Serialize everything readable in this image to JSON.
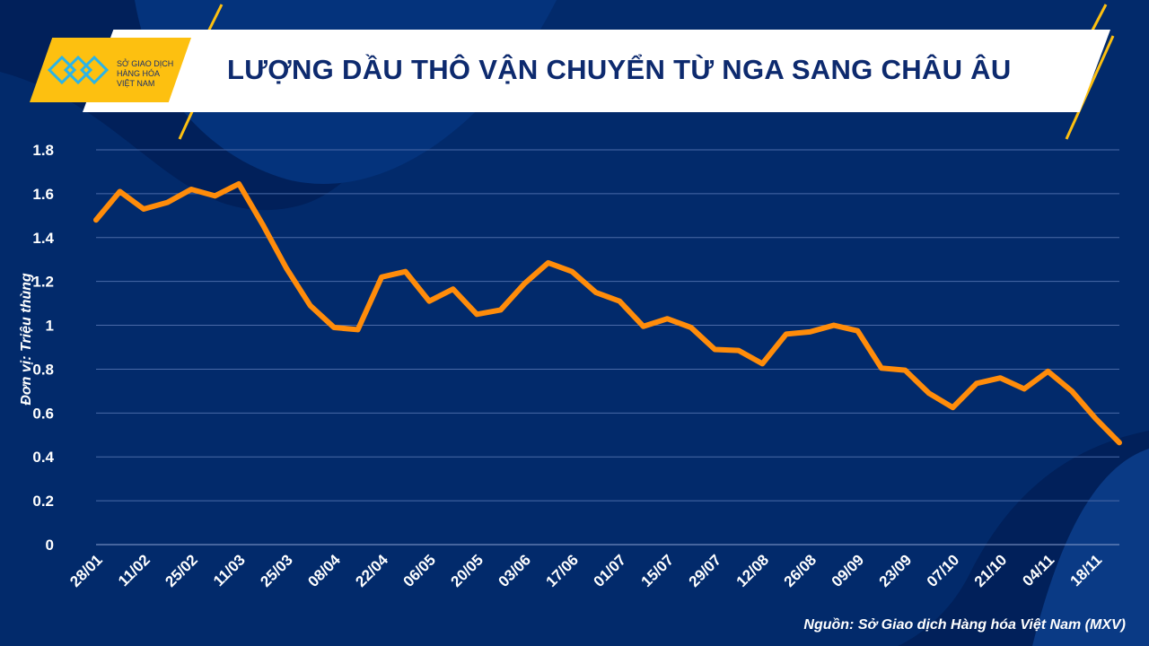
{
  "logo": {
    "line1": "SỞ GIAO DỊCH",
    "line2": "HÀNG HÓA",
    "line3": "VIỆT NAM"
  },
  "colors": {
    "background": "#022a6b",
    "line": "#ff8c0a",
    "accent": "#fdc010",
    "grid": "#4a6aa8"
  },
  "chart_data": {
    "type": "line",
    "title": "LƯỢNG DẦU THÔ VẬN CHUYỂN TỪ NGA SANG CHÂU ÂU",
    "ylabel": "Đơn vị: Triệu thùng",
    "xlabel": "",
    "ylim": [
      0,
      1.8
    ],
    "yticks": [
      "0",
      "0.2",
      "0.4",
      "0.6",
      "0.8",
      "1",
      "1.2",
      "1.4",
      "1.6",
      "1.8"
    ],
    "grid": true,
    "xticklabels": [
      "28/01",
      "11/02",
      "25/02",
      "11/03",
      "25/03",
      "08/04",
      "22/04",
      "06/05",
      "20/05",
      "03/06",
      "17/06",
      "01/07",
      "15/07",
      "29/07",
      "12/08",
      "26/08",
      "09/09",
      "23/09",
      "07/10",
      "21/10",
      "04/11",
      "18/11"
    ],
    "values": [
      1.48,
      1.61,
      1.53,
      1.56,
      1.62,
      1.59,
      1.645,
      1.46,
      1.26,
      1.09,
      0.99,
      0.98,
      1.22,
      1.245,
      1.11,
      1.165,
      1.05,
      1.07,
      1.19,
      1.285,
      1.245,
      1.15,
      1.11,
      0.995,
      1.03,
      0.99,
      0.89,
      0.885,
      0.825,
      0.96,
      0.97,
      1.0,
      0.975,
      0.805,
      0.795,
      0.69,
      0.625,
      0.735,
      0.76,
      0.71,
      0.79,
      0.7,
      0.575,
      0.465
    ]
  },
  "source": "Nguồn: Sở Giao dịch Hàng hóa Việt Nam (MXV)"
}
